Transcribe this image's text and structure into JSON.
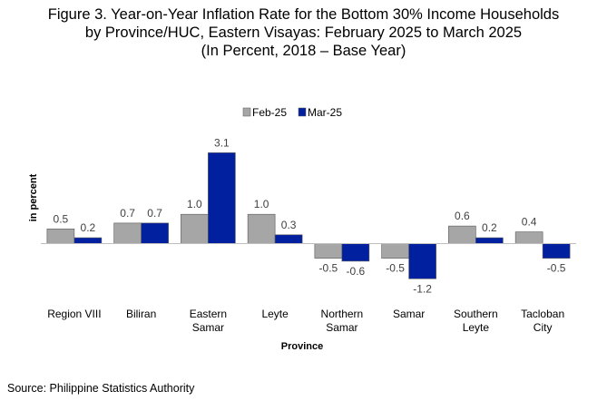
{
  "chart_data": {
    "type": "bar",
    "title": [
      "Figure 3. Year-on-Year Inflation Rate for the Bottom 30% Income Households",
      "by Province/HUC, Eastern Visayas: February 2025 to March 2025",
      "(In Percent, 2018 – Base Year)"
    ],
    "xlabel": "Province",
    "ylabel": "in percent",
    "categories": [
      [
        "Region VIII"
      ],
      [
        "Biliran"
      ],
      [
        "Eastern",
        "Samar"
      ],
      [
        "Leyte"
      ],
      [
        "Northern",
        "Samar"
      ],
      [
        "Samar"
      ],
      [
        "Southern",
        "Leyte"
      ],
      [
        "Tacloban",
        "City"
      ]
    ],
    "series": [
      {
        "name": "Feb-25",
        "color": "#a6a6a6",
        "values": [
          0.5,
          0.7,
          1.0,
          1.0,
          -0.5,
          -0.5,
          0.6,
          0.4
        ]
      },
      {
        "name": "Mar-25",
        "color": "#0020a0",
        "values": [
          0.2,
          0.7,
          3.1,
          0.3,
          -0.6,
          -1.2,
          0.2,
          -0.5
        ]
      }
    ],
    "ylim": [
      -1.2,
      3.1
    ],
    "grid": false,
    "legend_position": "top-center",
    "source": "Source: Philippine Statistics Authority"
  }
}
